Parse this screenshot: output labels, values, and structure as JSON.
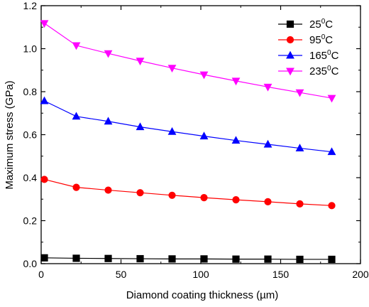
{
  "chart_data": {
    "type": "line",
    "xlabel": "Diamond coating thickness (µm)",
    "ylabel": "Maximum stress (GPa)",
    "xlim": [
      0,
      200
    ],
    "ylim": [
      0,
      1.2
    ],
    "xticks": [
      "0",
      "50",
      "100",
      "150",
      "200"
    ],
    "yticks": [
      "0.0",
      "0.2",
      "0.4",
      "0.6",
      "0.8",
      "1.0",
      "1.2"
    ],
    "grid": false,
    "legend_position": "top-right",
    "x": [
      2,
      22,
      42,
      62,
      82,
      102,
      122,
      142,
      162,
      182
    ],
    "series": [
      {
        "name_base": "25",
        "name_sup": "0",
        "name_unit": "C",
        "color": "#000000",
        "marker": "square",
        "values": [
          0.027,
          0.025,
          0.024,
          0.023,
          0.022,
          0.022,
          0.021,
          0.021,
          0.02,
          0.02
        ]
      },
      {
        "name_base": "95",
        "name_sup": "0",
        "name_unit": "C",
        "color": "#ff0000",
        "marker": "circle",
        "values": [
          0.392,
          0.355,
          0.342,
          0.33,
          0.318,
          0.307,
          0.297,
          0.288,
          0.278,
          0.27
        ]
      },
      {
        "name_base": "165",
        "name_sup": "0",
        "name_unit": "C",
        "color": "#0000ff",
        "marker": "triangle-up",
        "values": [
          0.757,
          0.685,
          0.662,
          0.636,
          0.614,
          0.593,
          0.573,
          0.555,
          0.537,
          0.52
        ]
      },
      {
        "name_base": "235",
        "name_sup": "0",
        "name_unit": "C",
        "color": "#ff00ff",
        "marker": "triangle-down",
        "values": [
          1.118,
          1.015,
          0.978,
          0.943,
          0.91,
          0.879,
          0.85,
          0.822,
          0.796,
          0.77
        ]
      }
    ]
  }
}
